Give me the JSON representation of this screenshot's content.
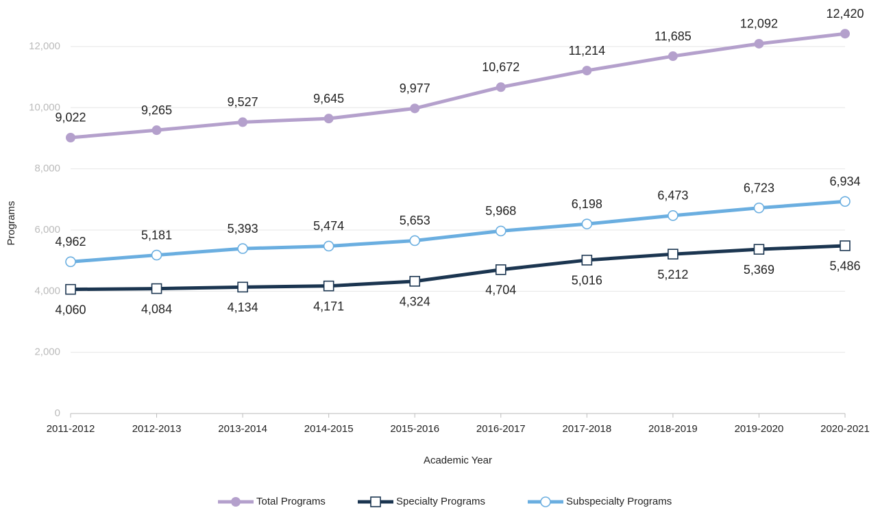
{
  "chart_data": {
    "type": "line",
    "x_label": "Academic Year",
    "y_label": "Programs",
    "categories": [
      "2011-2012",
      "2012-2013",
      "2013-2014",
      "2014-2015",
      "2015-2016",
      "2016-2017",
      "2017-2018",
      "2018-2019",
      "2019-2020",
      "2020-2021"
    ],
    "series": [
      {
        "name": "Total Programs",
        "color": "#b4a0cc",
        "marker": "filled-circle",
        "label_position": "above",
        "values": [
          9022,
          9265,
          9527,
          9645,
          9977,
          10672,
          11214,
          11685,
          12092,
          12420
        ],
        "value_labels": [
          "9,022",
          "9,265",
          "9,527",
          "9,645",
          "9,977",
          "10,672",
          "11,214",
          "11,685",
          "12,092",
          "12,420"
        ]
      },
      {
        "name": "Specialty Programs",
        "color": "#1b3550",
        "marker": "hollow-square",
        "label_position": "below",
        "values": [
          4060,
          4084,
          4134,
          4171,
          4324,
          4704,
          5016,
          5212,
          5369,
          5486
        ],
        "value_labels": [
          "4,060",
          "4,084",
          "4,134",
          "4,171",
          "4,324",
          "4,704",
          "5,016",
          "5,212",
          "5,369",
          "5,486"
        ]
      },
      {
        "name": "Subspecialty Programs",
        "color": "#6aaee0",
        "marker": "hollow-circle",
        "label_position": "above",
        "values": [
          4962,
          5181,
          5393,
          5474,
          5653,
          5968,
          6198,
          6473,
          6723,
          6934
        ],
        "value_labels": [
          "4,962",
          "5,181",
          "5,393",
          "5,474",
          "5,653",
          "5,968",
          "6,198",
          "6,473",
          "6,723",
          "6,934"
        ]
      }
    ],
    "ylim": [
      0,
      13000
    ],
    "yticks": [
      0,
      {
        "value": 2000,
        "label": "2,000"
      },
      {
        "value": 4000,
        "label": "4,000"
      },
      {
        "value": 6000,
        "label": "6,000"
      },
      {
        "value": 8000,
        "label": "8,000"
      },
      {
        "value": 10000,
        "label": "10,000"
      },
      {
        "value": 12000,
        "label": "12,000"
      }
    ],
    "grid": true,
    "legend": "bottom"
  }
}
